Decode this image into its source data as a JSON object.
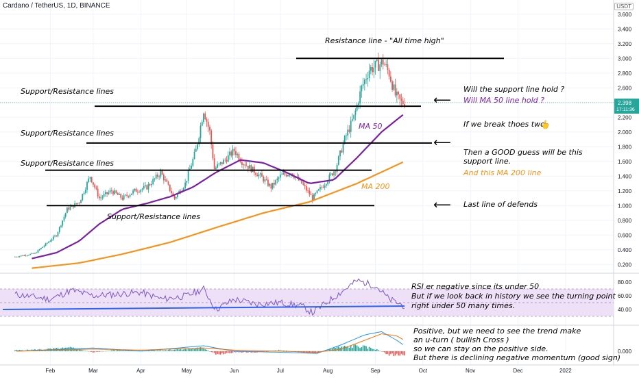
{
  "header": {
    "symbol_title": "Cardano / TetherUS, 1D, BINANCE",
    "currency_button": "USDT"
  },
  "price_label": {
    "price": "2.398",
    "countdown": "17:11:36"
  },
  "x_axis_labels": [
    "Feb",
    "Mar",
    "Apr",
    "May",
    "Jun",
    "Jul",
    "Aug",
    "Sep",
    "Oct",
    "Nov",
    "Dec",
    "2022"
  ],
  "price_axis_ticks": [
    "3.600",
    "3.400",
    "3.200",
    "3.000",
    "2.800",
    "2.600",
    "2.400",
    "2.200",
    "2.000",
    "1.800",
    "1.600",
    "1.400",
    "1.200",
    "1.000",
    "0.800",
    "0.600",
    "0.400",
    "0.200"
  ],
  "rsi_axis_ticks": [
    "80.00",
    "60.00",
    "40.00"
  ],
  "macd_axis_ticks": [
    "0.000"
  ],
  "annotations": {
    "resistance_ath": "Resistance line - \"All time high\"",
    "sr_line_1": "Support/Resistance lines",
    "sr_line_2": "Support/Resistance lines",
    "sr_line_3": "Support/Resistance lines",
    "sr_line_4": "Support/Resistance lines",
    "will_support_hold": "Will the support line hold ?",
    "will_ma50_hold": "Will MA 50 line hold ?",
    "if_we_break": "If we break thoes two",
    "good_guess_1": "Then a GOOD guess will be this",
    "good_guess_2": "support line.",
    "ma200_line_note": "And this MA 200 line",
    "last_line": "Last line of defends",
    "ma50_label": "MA 50",
    "ma200_label": "MA 200",
    "rsi_1": "RSI er negative since its under 50",
    "rsi_2": "But if we look back in history we see the turning point",
    "rsi_3": "right under 50 many times.",
    "macd_1": "Positive, but we need to see the trend make",
    "macd_2": "an u-turn ( bullish Cross )",
    "macd_3": "so we can stay on the positive side.",
    "macd_4": "But there is declining negative momentum (good sign)",
    "arrow_symbol": "⟵",
    "hand_icon": "👆"
  },
  "colors": {
    "up": "#26a69a",
    "down": "#ef5350",
    "ma50": "#7b1fa2",
    "ma200": "#f7931a",
    "rsi_line": "#7e57c2",
    "rsi_band": "#ede0f7",
    "trend_line": "#2962ff",
    "macd_line": "#2196f3",
    "signal_line": "#ff6d00"
  },
  "chart_data": {
    "type": "candlestick",
    "ylim": [
      0.1,
      3.7
    ],
    "horizontal_lines": [
      {
        "label": "Resistance line - \"All time high\"",
        "price": 3.0
      },
      {
        "label": "Support/Resistance lines",
        "price": 2.35
      },
      {
        "label": "Support/Resistance lines",
        "price": 1.85
      },
      {
        "label": "Support/Resistance lines",
        "price": 1.48
      },
      {
        "label": "Support/Resistance lines",
        "price": 1.0
      }
    ],
    "price_path": [
      [
        "Jan 8",
        0.3
      ],
      [
        "Jan 22",
        0.35
      ],
      [
        "Feb 5",
        0.6
      ],
      [
        "Feb 12",
        0.95
      ],
      [
        "Feb 20",
        1.05
      ],
      [
        "Feb 27",
        1.4
      ],
      [
        "Mar 5",
        1.1
      ],
      [
        "Mar 13",
        1.2
      ],
      [
        "Mar 20",
        1.1
      ],
      [
        "Mar 28",
        1.2
      ],
      [
        "Apr 5",
        1.25
      ],
      [
        "Apr 14",
        1.45
      ],
      [
        "Apr 23",
        1.1
      ],
      [
        "Apr 30",
        1.3
      ],
      [
        "May 7",
        1.75
      ],
      [
        "May 12",
        2.3
      ],
      [
        "May 16",
        2.0
      ],
      [
        "May 19",
        1.5
      ],
      [
        "May 25",
        1.6
      ],
      [
        "Jun 1",
        1.75
      ],
      [
        "Jun 6",
        1.6
      ],
      [
        "Jun 12",
        1.5
      ],
      [
        "Jun 18",
        1.4
      ],
      [
        "Jun 25",
        1.25
      ],
      [
        "Jul 1",
        1.4
      ],
      [
        "Jul 8",
        1.45
      ],
      [
        "Jul 15",
        1.3
      ],
      [
        "Jul 22",
        1.1
      ],
      [
        "Jul 30",
        1.3
      ],
      [
        "Aug 6",
        1.5
      ],
      [
        "Aug 12",
        1.9
      ],
      [
        "Aug 18",
        2.2
      ],
      [
        "Aug 23",
        2.6
      ],
      [
        "Aug 28",
        2.85
      ],
      [
        "Sep 2",
        2.9
      ],
      [
        "Sep 6",
        2.95
      ],
      [
        "Sep 10",
        2.8
      ],
      [
        "Sep 14",
        2.5
      ],
      [
        "Sep 18",
        2.4
      ],
      [
        "Sep 20",
        2.398
      ]
    ],
    "ma50": [
      [
        "Jan 20",
        0.28
      ],
      [
        "Feb 5",
        0.36
      ],
      [
        "Feb 20",
        0.52
      ],
      [
        "Mar 5",
        0.75
      ],
      [
        "Mar 20",
        0.95
      ],
      [
        "Apr 5",
        1.03
      ],
      [
        "Apr 20",
        1.12
      ],
      [
        "May 5",
        1.25
      ],
      [
        "May 20",
        1.45
      ],
      [
        "Jun 5",
        1.62
      ],
      [
        "Jun 20",
        1.58
      ],
      [
        "Jul 5",
        1.45
      ],
      [
        "Jul 20",
        1.3
      ],
      [
        "Aug 5",
        1.35
      ],
      [
        "Aug 20",
        1.65
      ],
      [
        "Sep 5",
        2.0
      ],
      [
        "Sep 20",
        2.25
      ]
    ],
    "ma200": [
      [
        "Jan 20",
        0.15
      ],
      [
        "Feb 20",
        0.22
      ],
      [
        "Mar 20",
        0.34
      ],
      [
        "Apr 20",
        0.5
      ],
      [
        "May 20",
        0.7
      ],
      [
        "Jun 20",
        0.9
      ],
      [
        "Jul 20",
        1.05
      ],
      [
        "Aug 20",
        1.3
      ],
      [
        "Sep 20",
        1.6
      ]
    ],
    "rsi": {
      "ylim": [
        20,
        90
      ],
      "band": [
        30,
        70
      ],
      "values": [
        [
          "Jan 10",
          62
        ],
        [
          "Feb 1",
          55
        ],
        [
          "Feb 15",
          68
        ],
        [
          "Mar 1",
          60
        ],
        [
          "Mar 15",
          62
        ],
        [
          "Apr 1",
          65
        ],
        [
          "Apr 15",
          55
        ],
        [
          "May 1",
          60
        ],
        [
          "May 12",
          70
        ],
        [
          "May 20",
          40
        ],
        [
          "Jun 1",
          55
        ],
        [
          "Jun 15",
          48
        ],
        [
          "Jul 1",
          50
        ],
        [
          "Jul 15",
          45
        ],
        [
          "Jul 22",
          35
        ],
        [
          "Aug 5",
          58
        ],
        [
          "Aug 20",
          82
        ],
        [
          "Sep 1",
          75
        ],
        [
          "Sep 10",
          55
        ],
        [
          "Sep 20",
          45
        ]
      ],
      "trend_line": [
        [
          "Jan 1",
          40
        ],
        [
          "Sep 20",
          45
        ]
      ]
    },
    "macd": {
      "ylim": [
        -0.12,
        0.22
      ],
      "histogram": [
        [
          "Jan 15",
          0.01
        ],
        [
          "Feb 1",
          0.02
        ],
        [
          "Feb 15",
          0.03
        ],
        [
          "Mar 1",
          -0.01
        ],
        [
          "Mar 15",
          0.01
        ],
        [
          "Apr 1",
          0.005
        ],
        [
          "Apr 15",
          0.01
        ],
        [
          "May 1",
          0.02
        ],
        [
          "May 12",
          0.03
        ],
        [
          "May 20",
          -0.03
        ],
        [
          "Jun 1",
          -0.01
        ],
        [
          "Jun 15",
          -0.01
        ],
        [
          "Jul 1",
          0.01
        ],
        [
          "Jul 15",
          -0.01
        ],
        [
          "Jul 25",
          -0.02
        ],
        [
          "Aug 5",
          0.03
        ],
        [
          "Aug 20",
          0.05
        ],
        [
          "Sep 1",
          0.02
        ],
        [
          "Sep 10",
          -0.03
        ],
        [
          "Sep 20",
          -0.04
        ]
      ],
      "macd_line": [
        [
          "Jan 10",
          0.0
        ],
        [
          "Mar 1",
          0.03
        ],
        [
          "Apr 1",
          0.0
        ],
        [
          "May 12",
          0.05
        ],
        [
          "Jun 1",
          0.0
        ],
        [
          "Jul 1",
          -0.01
        ],
        [
          "Jul 25",
          -0.02
        ],
        [
          "Aug 10",
          0.06
        ],
        [
          "Aug 25",
          0.15
        ],
        [
          "Sep 5",
          0.18
        ],
        [
          "Sep 15",
          0.1
        ],
        [
          "Sep 20",
          0.05
        ]
      ],
      "signal_line": [
        [
          "Jan 10",
          0.0
        ],
        [
          "Mar 1",
          0.02
        ],
        [
          "Apr 1",
          0.01
        ],
        [
          "May 12",
          0.03
        ],
        [
          "Jun 1",
          0.01
        ],
        [
          "Jul 1",
          0.0
        ],
        [
          "Jul 25",
          -0.01
        ],
        [
          "Aug 10",
          0.02
        ],
        [
          "Aug 25",
          0.1
        ],
        [
          "Sep 5",
          0.16
        ],
        [
          "Sep 15",
          0.14
        ],
        [
          "Sep 20",
          0.1
        ]
      ]
    }
  }
}
